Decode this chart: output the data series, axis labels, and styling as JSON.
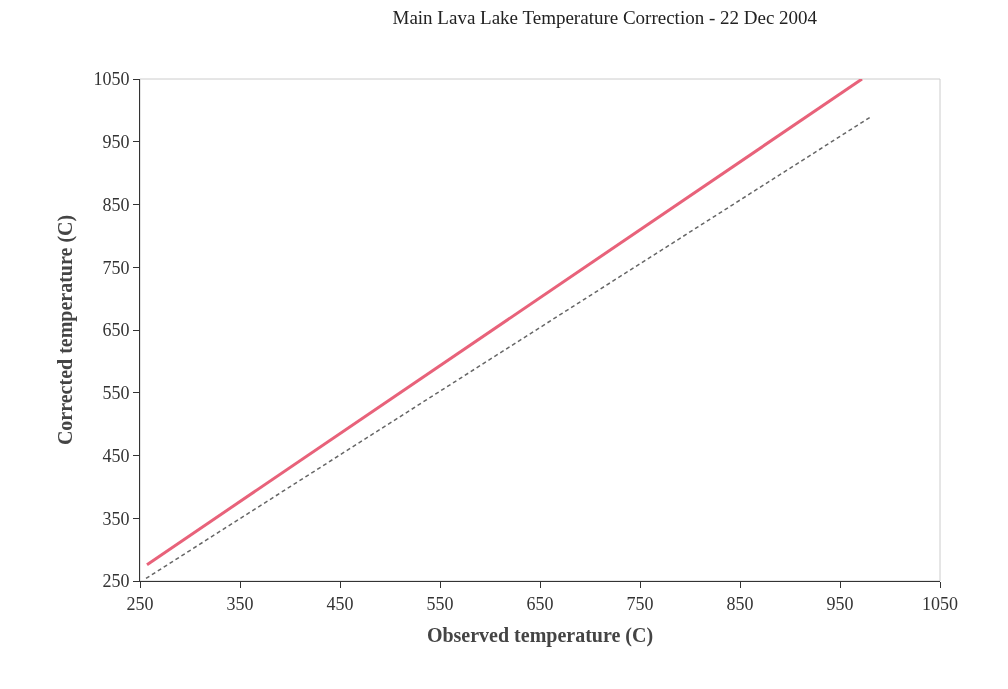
{
  "chart_data": {
    "type": "line",
    "title": "Main Lava Lake Temperature Correction - 22 Dec 2004",
    "xlabel": "Observed temperature (C)",
    "ylabel": "Corrected temperature (C)",
    "series": [
      {
        "x": [
          257,
          972
        ],
        "values": [
          276,
          1050
        ],
        "color": "#e8627a",
        "line_style": "solid"
      },
      {
        "x": [
          256,
          982
        ],
        "values": [
          254,
          991
        ],
        "color": "#666666",
        "line_style": "dashed"
      }
    ],
    "xlim": [
      250,
      1050
    ],
    "ylim": [
      250,
      1050
    ],
    "xticks": [
      250,
      350,
      450,
      550,
      650,
      750,
      850,
      950,
      1050
    ],
    "yticks": [
      250,
      350,
      450,
      550,
      650,
      750,
      850,
      950,
      1050
    ],
    "grid": false,
    "marker": "none"
  }
}
